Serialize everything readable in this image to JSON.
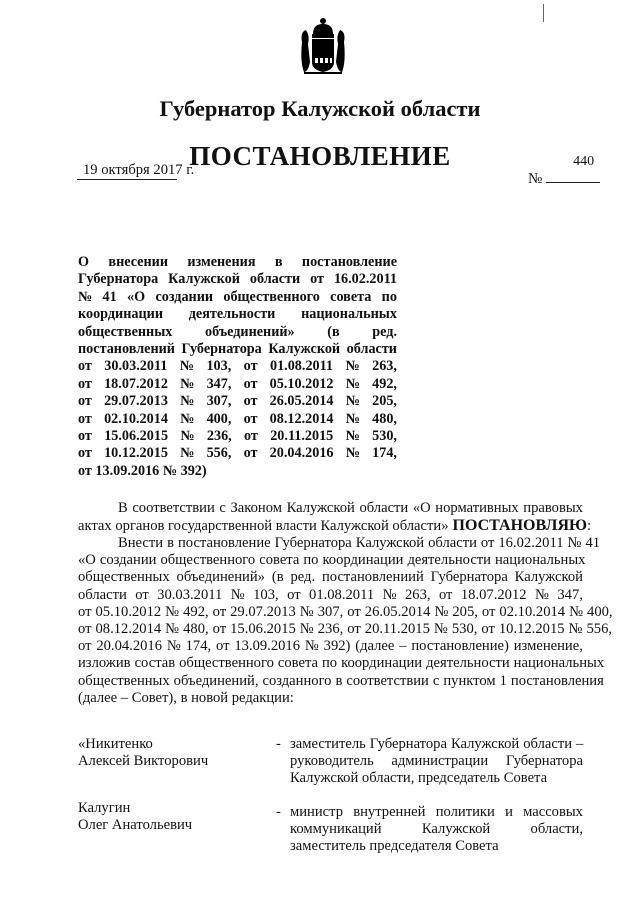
{
  "header": {
    "authority": "Губернатор Калужской области",
    "doc_type": "ПОСТАНОВЛЕНИЕ",
    "date": "19 октября 2017 г.",
    "number_label": "№",
    "number": "440"
  },
  "subject_lines": [
    "О внесении изменения в постановление",
    "Губернатора Калужской области от 16.02.2011",
    "№ 41 «О создании общественного совета по",
    "координации деятельности национальных",
    "общественных объединений» (в ред.",
    "постановлений Губернатора Калужской области",
    "от 30.03.2011 № 103, от 01.08.2011 № 263,",
    "от 18.07.2012 № 347, от 05.10.2012 № 492,",
    "от 29.07.2013 № 307, от 26.05.2014 № 205,",
    "от 02.10.2014 № 400, от 08.12.2014 № 480,",
    "от 15.06.2015 № 236, от 20.11.2015 № 530,",
    "от 10.12.2015 № 556, от 20.04.2016 № 174,",
    "от 13.09.2016 № 392)"
  ],
  "body": {
    "p1_line1": "В соответствии с Законом Калужской области «О нормативных правовых",
    "p1_line2": "актах органов государственной власти Калужской области»",
    "p1_bold": "ПОСТАНОВЛЯЮ",
    "p1_colon": ":",
    "p2_lines": [
      "Внести в постановление Губернатора Калужской области от 16.02.2011 № 41",
      "«О создании общественного совета по координации деятельности национальных",
      "общественных объединений» (в ред. постановлениий Губернатора Калужской",
      "области от 30.03.2011 № 103, от 01.08.2011 № 263, от 18.07.2012 № 347,",
      "от 05.10.2012 № 492, от 29.07.2013 № 307, от 26.05.2014 № 205, от 02.10.2014 № 400,",
      "от 08.12.2014 № 480, от 15.06.2015 № 236, от 20.11.2015 № 530, от 10.12.2015 № 556,",
      "от 20.04.2016 № 174, от 13.09.2016 № 392) (далее – постановление) изменение,",
      "изложив состав общественного совета по координации деятельности национальных",
      "общественных объединений, созданного в соответствии с пунктом 1 постановления",
      "(далее – Совет), в новой редакции:"
    ]
  },
  "members": [
    {
      "name_lines": [
        "«Никитенко",
        "Алексей Викторович"
      ],
      "dash": "-",
      "role_lines": [
        "заместитель Губернатора Калужской области –",
        "руководитель администрации Губернатора",
        "Калужской области, председатель Совета"
      ]
    },
    {
      "name_lines": [
        "Калугин",
        "Олег Анатольевич"
      ],
      "dash": "-",
      "role_lines": [
        "министр внутренней политики и массовых",
        "коммуникаций Калужской области,",
        "заместитель председателя Совета"
      ]
    }
  ]
}
